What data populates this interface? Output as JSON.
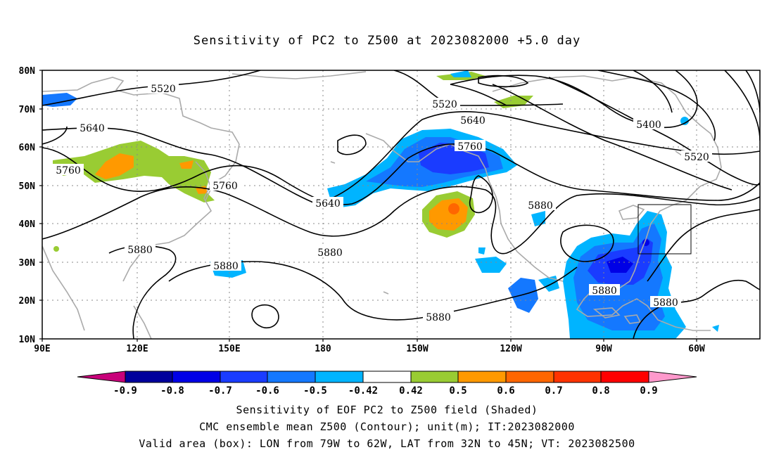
{
  "title": "Sensitivity of PC2 to Z500 at 2023082000 +5.0 day",
  "map": {
    "lat_labels": [
      "80N",
      "70N",
      "60N",
      "50N",
      "40N",
      "30N",
      "20N",
      "10N"
    ],
    "lon_labels": [
      "90E",
      "120E",
      "150E",
      "180",
      "150W",
      "120W",
      "90W",
      "60W"
    ],
    "lat_range": [
      10,
      80
    ],
    "lon_range_east": [
      90,
      325
    ],
    "grid": true,
    "contour_labels": [
      "5520",
      "5520",
      "5400",
      "5520",
      "5640",
      "5640",
      "5760",
      "5760",
      "5760",
      "5640",
      "5880",
      "5880",
      "5880",
      "5880",
      "5880",
      "5880",
      "5880"
    ],
    "valid_area_box": {
      "lon": [
        -79,
        -62
      ],
      "lat": [
        32,
        45
      ]
    }
  },
  "colorbar": {
    "labels": [
      "-0.9",
      "-0.8",
      "-0.7",
      "-0.6",
      "-0.5",
      "-0.42",
      "0.42",
      "0.5",
      "0.6",
      "0.7",
      "0.8",
      "0.9"
    ],
    "colors": [
      "#c8007a",
      "#00009c",
      "#0000e6",
      "#1a3cff",
      "#1478ff",
      "#00b4ff",
      "#ffffff",
      "#99cc33",
      "#ff9900",
      "#ff6600",
      "#ff3300",
      "#ff0000",
      "#ff99cc"
    ]
  },
  "captions": [
    "Sensitivity of EOF PC2 to Z500 field (Shaded)",
    "CMC ensemble mean Z500 (Contour); unit(m); IT:2023082000",
    "Valid area (box): LON from 79W to 62W, LAT from 32N to 45N; VT: 2023082500"
  ]
}
